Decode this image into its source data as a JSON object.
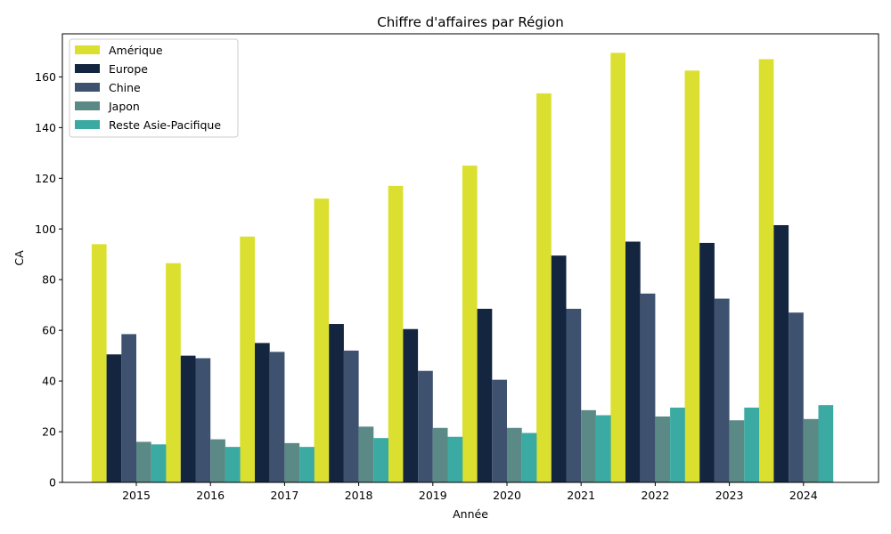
{
  "chart_data": {
    "type": "bar",
    "title": "Chiffre d'affaires par Région",
    "xlabel": "Année",
    "ylabel": "CA",
    "categories": [
      "2015",
      "2016",
      "2017",
      "2018",
      "2019",
      "2020",
      "2021",
      "2022",
      "2023",
      "2024"
    ],
    "ylim": [
      0,
      177
    ],
    "yticks": [
      0,
      20,
      40,
      60,
      80,
      100,
      120,
      140,
      160
    ],
    "grid": false,
    "legend_position": "top-left",
    "series": [
      {
        "name": "Amérique",
        "color": "#dbe030",
        "values": [
          94,
          86.5,
          97,
          112,
          117,
          125,
          153.5,
          169.5,
          162.5,
          167
        ]
      },
      {
        "name": "Europe",
        "color": "#142540",
        "values": [
          50.5,
          50,
          55,
          62.5,
          60.5,
          68.5,
          89.5,
          95,
          94.5,
          101.5
        ]
      },
      {
        "name": "Chine",
        "color": "#3e5270",
        "values": [
          58.5,
          49,
          51.5,
          52,
          44,
          40.5,
          68.5,
          74.5,
          72.5,
          67
        ]
      },
      {
        "name": "Japon",
        "color": "#5b8985",
        "values": [
          16,
          17,
          15.5,
          22,
          21.5,
          21.5,
          28.5,
          26,
          24.5,
          25
        ]
      },
      {
        "name": "Reste Asie-Pacifique",
        "color": "#3aaaa3",
        "values": [
          15,
          14,
          14,
          17.5,
          18,
          19.5,
          26.5,
          29.5,
          29.5,
          30.5
        ]
      }
    ]
  }
}
